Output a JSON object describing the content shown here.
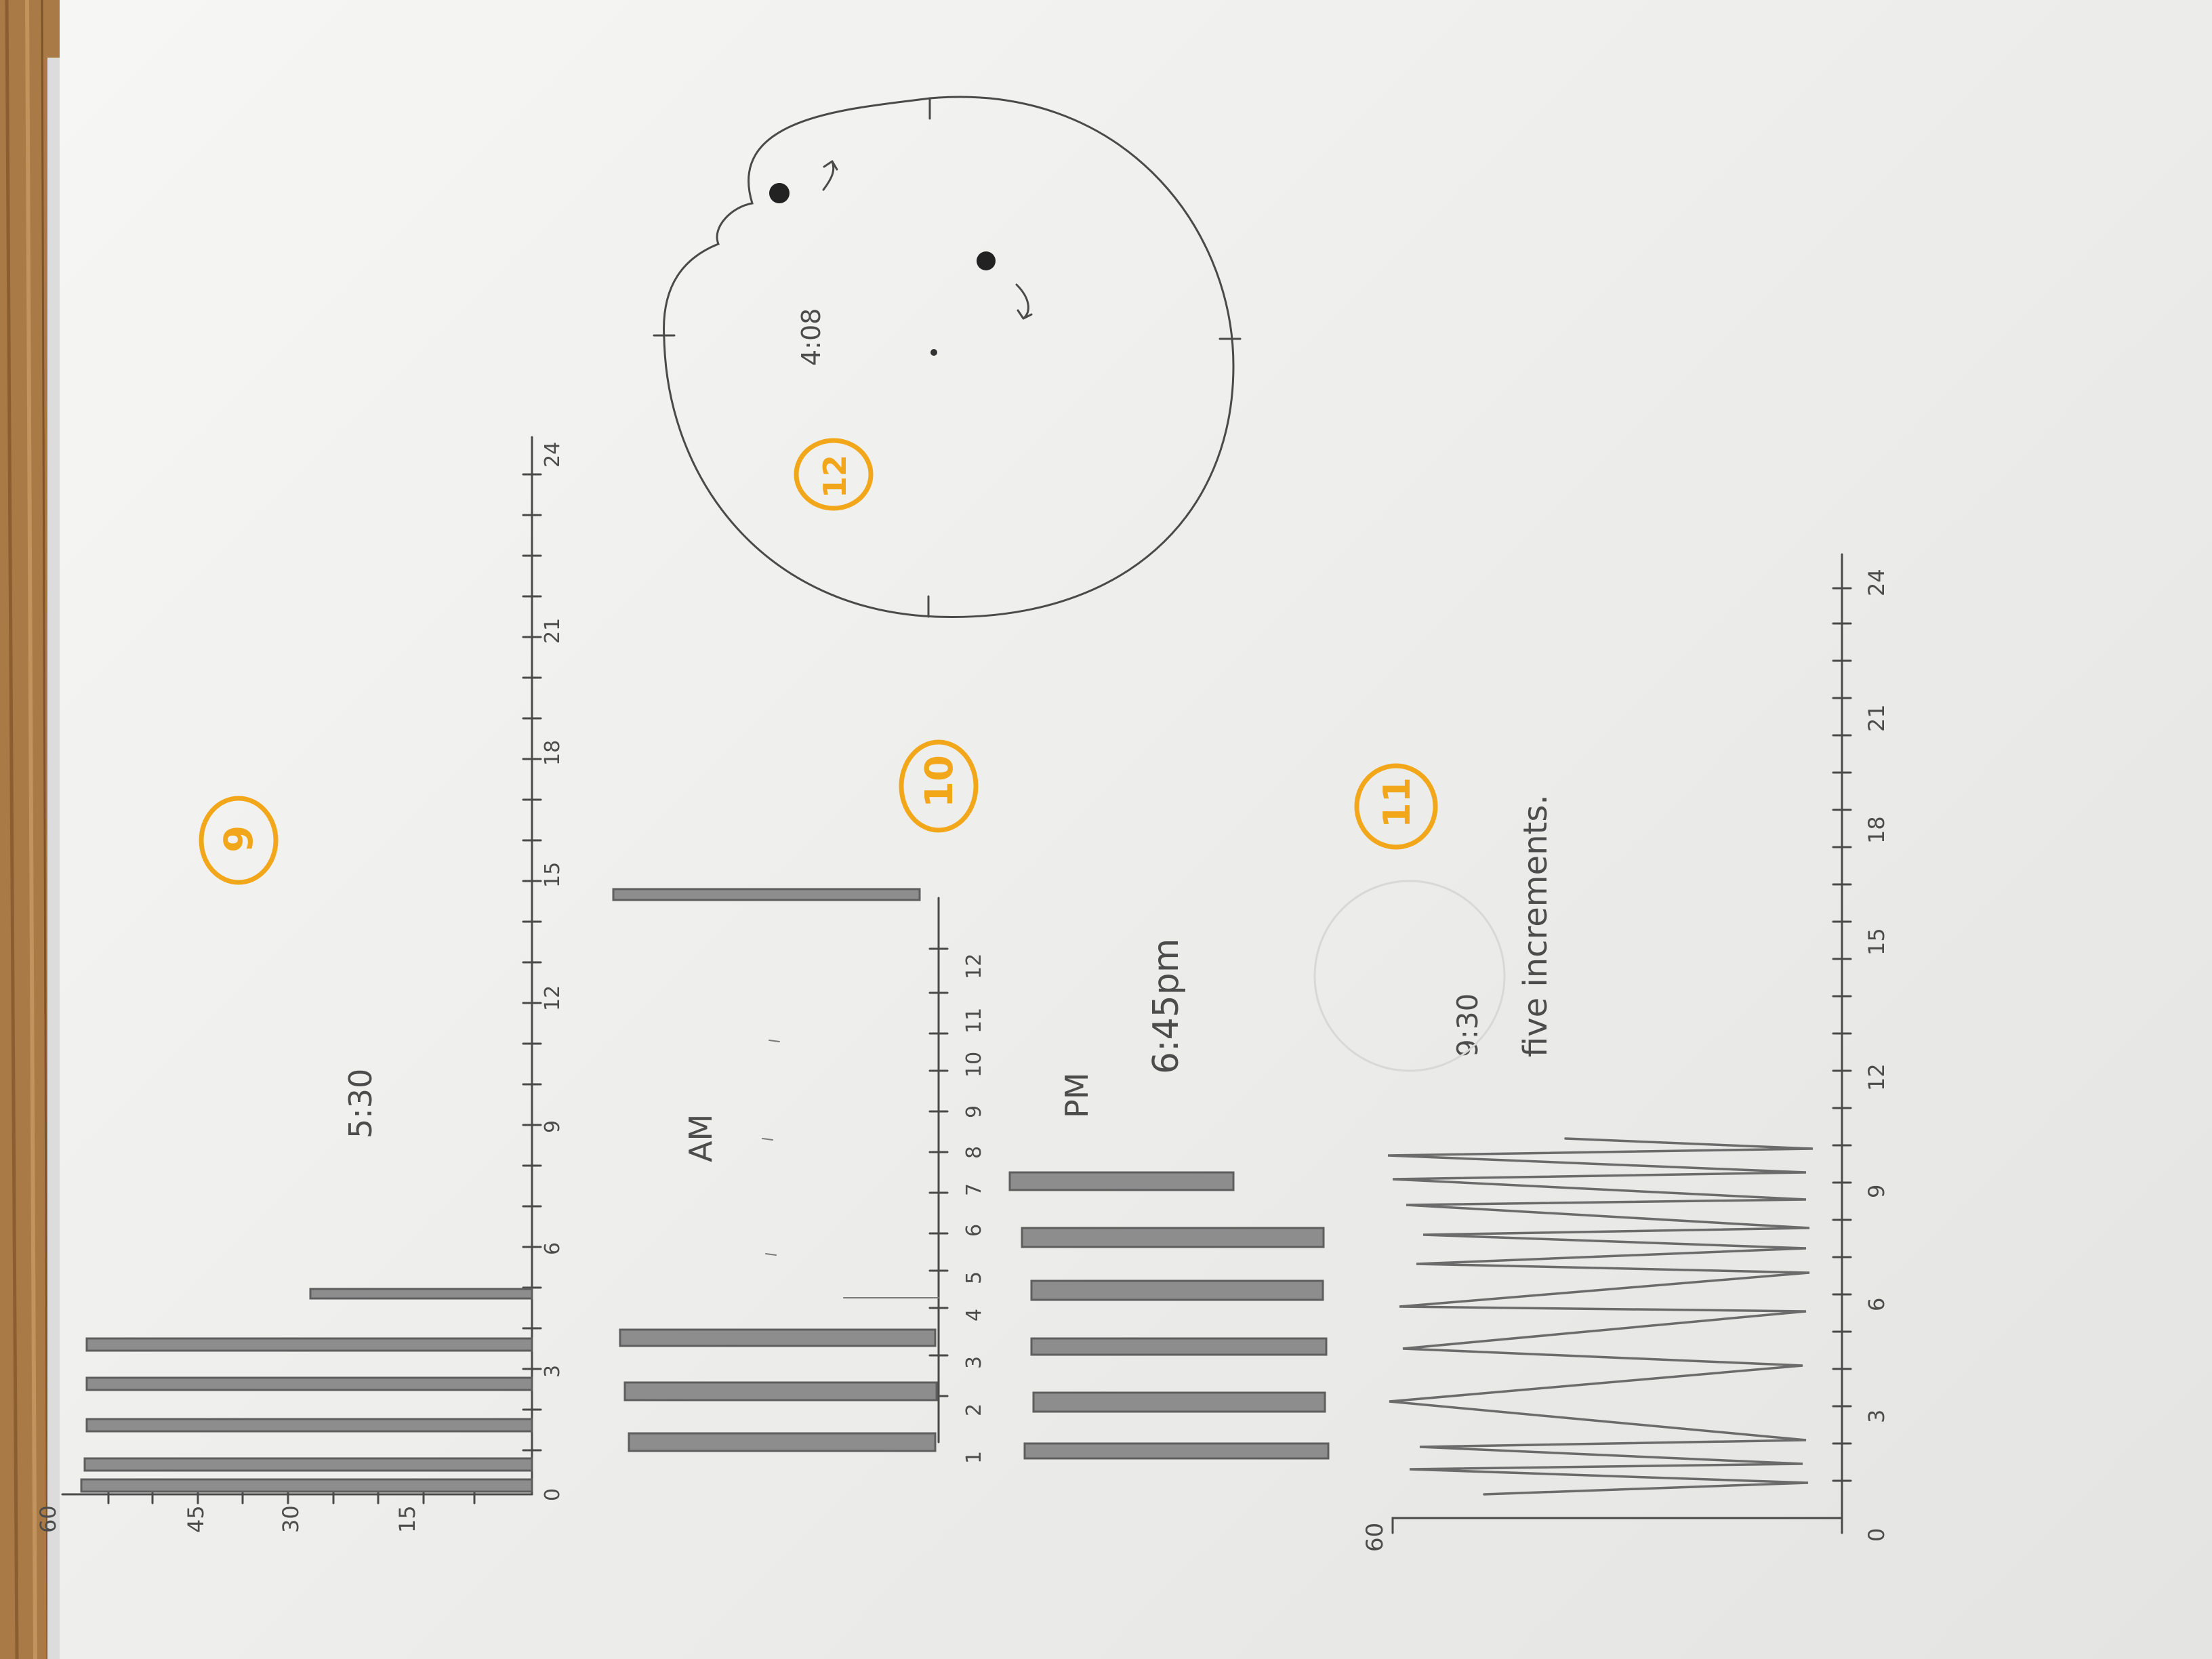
{
  "colors": {
    "wood": "#a97a45",
    "paper": "#f1f1ef",
    "pencil": "#4a4a4a",
    "highlight": "#f2a71b"
  },
  "problem9": {
    "number": "9",
    "y_ticks": [
      "60",
      "45",
      "30",
      "15"
    ],
    "x_ticks": [
      "0",
      "3",
      "6",
      "9",
      "12",
      "15",
      "18",
      "21",
      "24"
    ],
    "note": "5:30"
  },
  "problem10": {
    "number": "10",
    "am_label": "AM",
    "pm_label": "PM",
    "hours": [
      "1",
      "2",
      "3",
      "4",
      "5",
      "6",
      "7",
      "8",
      "9",
      "10",
      "11",
      "12"
    ],
    "time": "6:45pm"
  },
  "problem11": {
    "number": "11",
    "y_ticks": [
      "60"
    ],
    "x_ticks": [
      "0",
      "3",
      "6",
      "9",
      "12",
      "15",
      "18",
      "21",
      "24"
    ],
    "time": "9:30",
    "note": "five increments."
  },
  "problem12": {
    "number": "12",
    "time": "4:08"
  }
}
